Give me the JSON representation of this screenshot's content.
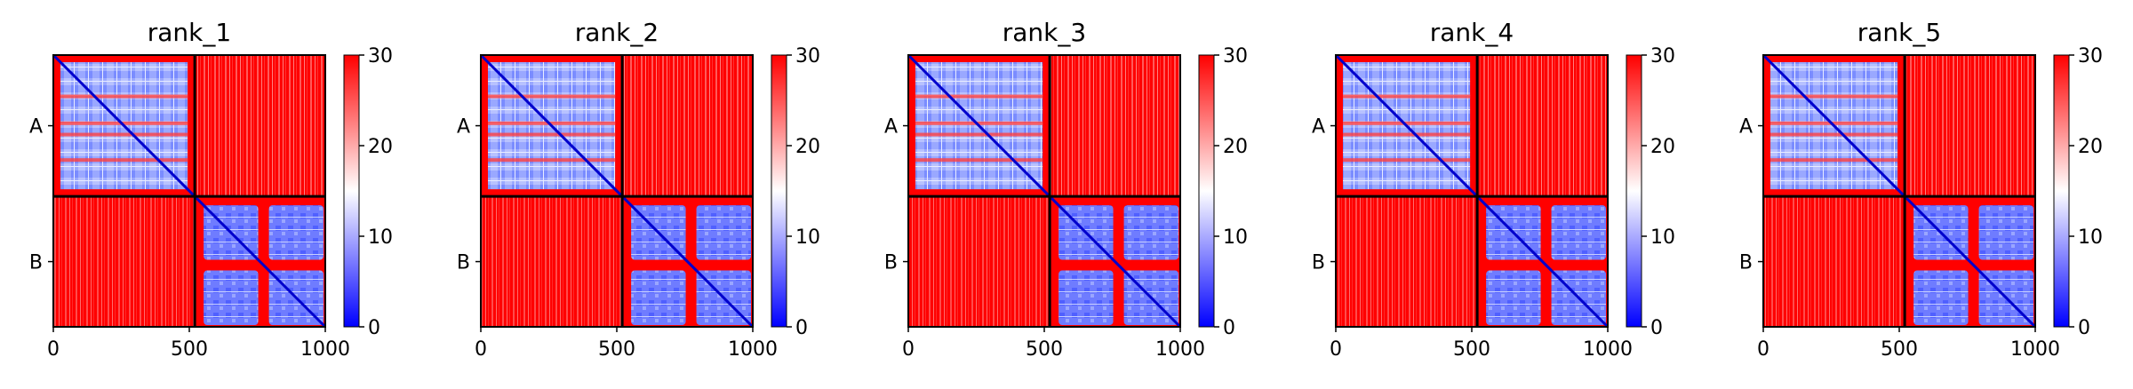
{
  "chart_data": [
    {
      "type": "heatmap",
      "title": "rank_1",
      "chains": [
        "A",
        "B"
      ],
      "chain_boundary": 520,
      "residues": 1000,
      "xticks": [
        0,
        500,
        1000
      ],
      "colorbar": {
        "ticks": [
          0,
          10,
          20,
          30
        ],
        "range": [
          0,
          30
        ],
        "colormap": "bwr"
      }
    },
    {
      "type": "heatmap",
      "title": "rank_2",
      "chains": [
        "A",
        "B"
      ],
      "chain_boundary": 520,
      "residues": 1000,
      "xticks": [
        0,
        500,
        1000
      ],
      "colorbar": {
        "ticks": [
          0,
          10,
          20,
          30
        ],
        "range": [
          0,
          30
        ],
        "colormap": "bwr"
      }
    },
    {
      "type": "heatmap",
      "title": "rank_3",
      "chains": [
        "A",
        "B"
      ],
      "chain_boundary": 520,
      "residues": 1000,
      "xticks": [
        0,
        500,
        1000
      ],
      "colorbar": {
        "ticks": [
          0,
          10,
          20,
          30
        ],
        "range": [
          0,
          30
        ],
        "colormap": "bwr"
      }
    },
    {
      "type": "heatmap",
      "title": "rank_4",
      "chains": [
        "A",
        "B"
      ],
      "chain_boundary": 520,
      "residues": 1000,
      "xticks": [
        0,
        500,
        1000
      ],
      "colorbar": {
        "ticks": [
          0,
          10,
          20,
          30
        ],
        "range": [
          0,
          30
        ],
        "colormap": "bwr"
      }
    },
    {
      "type": "heatmap",
      "title": "rank_5",
      "chains": [
        "A",
        "B"
      ],
      "chain_boundary": 520,
      "residues": 1000,
      "xticks": [
        0,
        500,
        1000
      ],
      "colorbar": {
        "ticks": [
          0,
          10,
          20,
          30
        ],
        "range": [
          0,
          30
        ],
        "colormap": "bwr"
      }
    }
  ],
  "colors": {
    "high": "#ff0000",
    "mid": "#ffffff",
    "low": "#0000ff",
    "frame": "#000000"
  }
}
